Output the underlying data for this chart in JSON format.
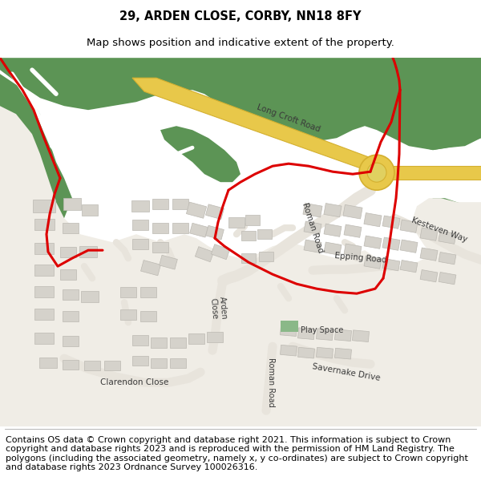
{
  "title_line1": "29, ARDEN CLOSE, CORBY, NN18 8FY",
  "title_line2": "Map shows position and indicative extent of the property.",
  "footer_text": "Contains OS data © Crown copyright and database right 2021. This information is subject to Crown copyright and database rights 2023 and is reproduced with the permission of HM Land Registry. The polygons (including the associated geometry, namely x, y co-ordinates) are subject to Crown copyright and database rights 2023 Ordnance Survey 100026316.",
  "title_fontsize": 10.5,
  "title2_fontsize": 9.5,
  "footer_fontsize": 8.0,
  "bg_color": "#ffffff",
  "map_bg": "#f0ede6",
  "green_color": "#5c9455",
  "road_yellow": "#e8c84a",
  "road_yellow_border": "#d4b030",
  "white_path": "#ffffff",
  "building_color": "#d5d2cb",
  "building_edge": "#bcb9b2",
  "red_line_color": "#dd0000",
  "road_label_color": "#3a3a3a",
  "play_space_color": "#8ab888",
  "separator_color": "#aaaaaa"
}
